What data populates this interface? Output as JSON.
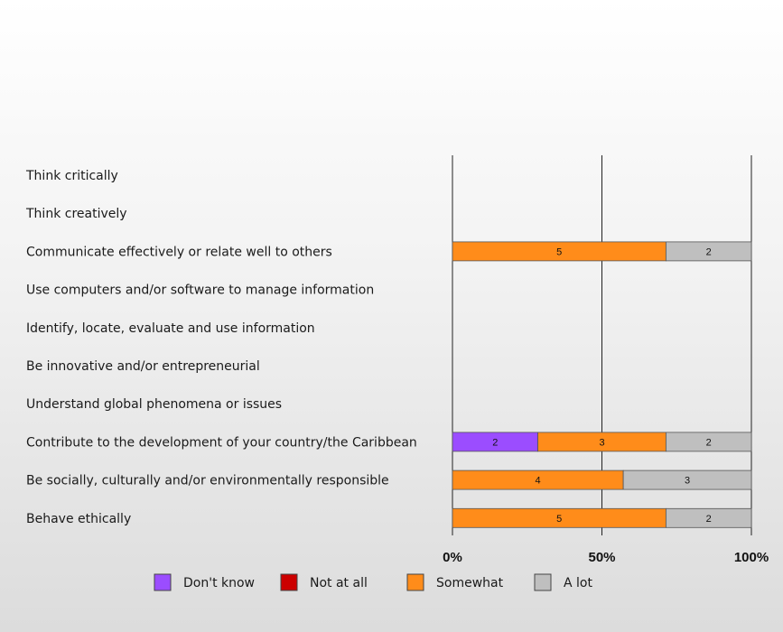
{
  "chart_data": {
    "type": "bar",
    "orientation": "horizontal",
    "stacked": true,
    "normalized": true,
    "title": "",
    "xlabel": "",
    "ylabel": "",
    "xlim": [
      0,
      100
    ],
    "x_ticks": [
      "0%",
      "50%",
      "100%"
    ],
    "grid": true,
    "legend_position": "bottom",
    "categories": [
      "Think critically",
      "Think creatively",
      "Communicate effectively or relate well to others",
      "Use computers and/or software to manage information",
      "Identify, locate, evaluate and use information",
      "Be innovative and/or entrepreneurial",
      "Understand global phenomena or issues",
      "Contribute to the development of your country/the Caribbean",
      "Be socially, culturally and/or environmentally responsible",
      "Behave ethically"
    ],
    "series": [
      {
        "name": "Don't know",
        "color": "#9b4dff",
        "values": [
          0,
          0,
          0,
          0,
          0,
          0,
          0,
          2,
          0,
          0
        ]
      },
      {
        "name": "Not at all",
        "color": "#cc0000",
        "values": [
          0,
          0,
          0,
          0,
          0,
          0,
          0,
          0,
          0,
          0
        ]
      },
      {
        "name": "Somewhat",
        "color": "#ff8c1a",
        "values": [
          0,
          0,
          5,
          0,
          0,
          0,
          0,
          3,
          4,
          5
        ]
      },
      {
        "name": "A lot",
        "color": "#bfbfbf",
        "values": [
          0,
          0,
          2,
          0,
          0,
          0,
          0,
          2,
          3,
          2
        ]
      }
    ]
  }
}
